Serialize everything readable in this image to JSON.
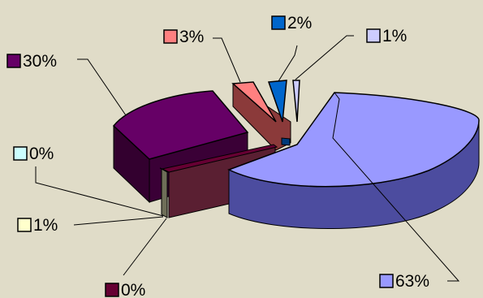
{
  "colors": {
    "background": "#e0dcc8"
  },
  "chart_data": {
    "type": "pie",
    "three_d": true,
    "exploded": true,
    "title": "",
    "slices": [
      {
        "label": "63%",
        "value": 63,
        "color": "#9999ff"
      },
      {
        "label": "0%",
        "value": 0,
        "color": "#660033"
      },
      {
        "label": "1%",
        "value": 1,
        "color": "#ffffcc"
      },
      {
        "label": "0%",
        "value": 0,
        "color": "#ccffff"
      },
      {
        "label": "30%",
        "value": 30,
        "color": "#660066"
      },
      {
        "label": "3%",
        "value": 3,
        "color": "#ff8080"
      },
      {
        "label": "2%",
        "value": 2,
        "color": "#0066cc"
      },
      {
        "label": "1%",
        "value": 1,
        "color": "#ccccff"
      }
    ]
  }
}
